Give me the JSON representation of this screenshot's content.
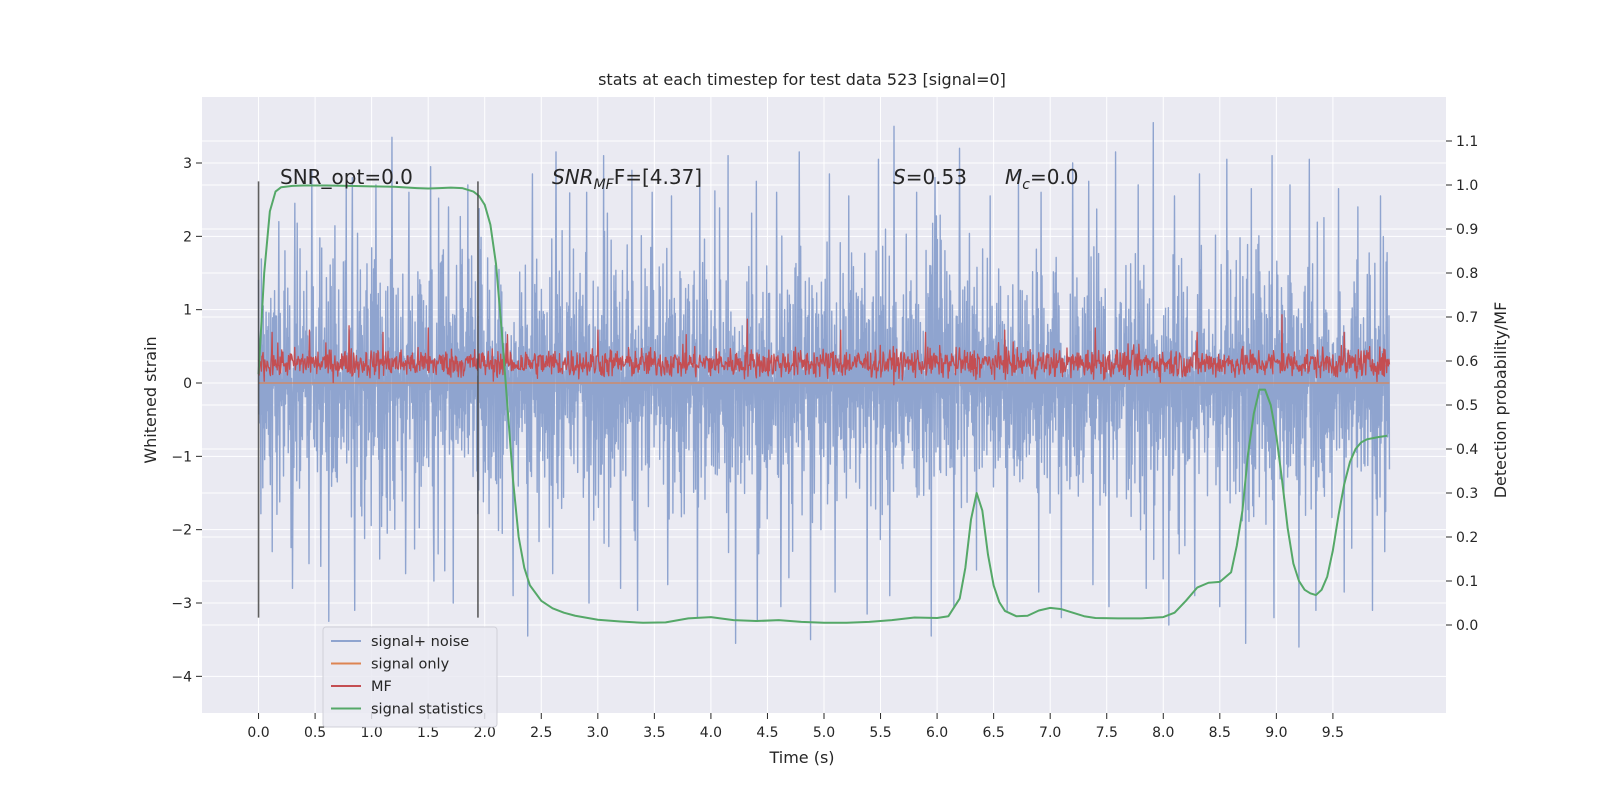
{
  "chart_data": {
    "type": "line",
    "title": "stats at each timestep for test data 523 [signal=0]",
    "xlabel": "Time (s)",
    "ylabel": "Whitened strain",
    "ylabel_right": "Detection probability/MF",
    "xlim": [
      -0.5,
      10.5
    ],
    "ylim": [
      -4.5,
      3.9
    ],
    "ylim_right": [
      -0.2,
      1.2
    ],
    "x_ticks": [
      "0.0",
      "0.5",
      "1.0",
      "1.5",
      "2.0",
      "2.5",
      "3.0",
      "3.5",
      "4.0",
      "4.5",
      "5.0",
      "5.5",
      "6.0",
      "6.5",
      "7.0",
      "7.5",
      "8.0",
      "8.5",
      "9.0",
      "9.5"
    ],
    "y_ticks": [
      "−4",
      "−3",
      "−2",
      "−1",
      "0",
      "1",
      "2",
      "3"
    ],
    "y_ticks_right": [
      "0.0",
      "0.1",
      "0.2",
      "0.3",
      "0.4",
      "0.5",
      "0.6",
      "0.7",
      "0.8",
      "0.9",
      "1.0",
      "1.1"
    ],
    "grid": true,
    "legend_position": "lower-left",
    "annotations": {
      "snr_opt": "SNR_opt=0.0",
      "snr_mf_base": "SNR",
      "snr_mf_sub": "MF",
      "snr_mf_rest": "F=[4.37]",
      "s_sym": "S",
      "s_rest": "=0.53",
      "mc_base": "M",
      "mc_sub": "c",
      "mc_rest": "=0.0"
    },
    "vertical_markers": [
      0.0,
      1.94
    ],
    "series": [
      {
        "name": "signal+ noise",
        "color": "#8fa4cf",
        "kind": "noise",
        "x_range": [
          0.0,
          10.0
        ],
        "axis": "left",
        "spread": 1.3,
        "peaks_high": [
          [
            0.18,
            2.2
          ],
          [
            0.32,
            2.45
          ],
          [
            0.47,
            2.9
          ],
          [
            0.62,
            2.6
          ],
          [
            0.83,
            2.8
          ],
          [
            1.04,
            2.7
          ],
          [
            1.18,
            3.35
          ],
          [
            1.33,
            2.6
          ],
          [
            1.52,
            2.95
          ],
          [
            1.68,
            2.4
          ],
          [
            1.85,
            2.7
          ],
          [
            2.25,
            2.55
          ],
          [
            2.42,
            2.85
          ],
          [
            2.63,
            3.15
          ],
          [
            2.9,
            2.6
          ],
          [
            3.05,
            3.1
          ],
          [
            3.3,
            2.9
          ],
          [
            3.48,
            2.6
          ],
          [
            3.65,
            2.55
          ],
          [
            3.9,
            2.85
          ],
          [
            4.15,
            3.1
          ],
          [
            4.4,
            2.75
          ],
          [
            4.58,
            2.6
          ],
          [
            4.78,
            3.15
          ],
          [
            5.05,
            2.85
          ],
          [
            5.22,
            2.55
          ],
          [
            5.48,
            3.05
          ],
          [
            5.62,
            3.5
          ],
          [
            5.82,
            2.6
          ],
          [
            5.98,
            2.8
          ],
          [
            6.2,
            3.2
          ],
          [
            6.47,
            2.55
          ],
          [
            6.72,
            2.85
          ],
          [
            6.92,
            2.6
          ],
          [
            7.2,
            3.0
          ],
          [
            7.34,
            2.75
          ],
          [
            7.58,
            3.15
          ],
          [
            7.78,
            2.7
          ],
          [
            7.91,
            3.55
          ],
          [
            8.1,
            2.55
          ],
          [
            8.32,
            2.85
          ],
          [
            8.56,
            3.05
          ],
          [
            8.78,
            2.65
          ],
          [
            8.96,
            3.1
          ],
          [
            9.12,
            2.7
          ],
          [
            9.29,
            3.05
          ],
          [
            9.55,
            2.65
          ],
          [
            9.72,
            2.4
          ],
          [
            9.92,
            2.55
          ]
        ],
        "peaks_low": [
          [
            0.12,
            -2.3
          ],
          [
            0.3,
            -2.8
          ],
          [
            0.55,
            -2.5
          ],
          [
            0.62,
            -3.25
          ],
          [
            0.85,
            -3.1
          ],
          [
            1.07,
            -2.4
          ],
          [
            1.3,
            -2.6
          ],
          [
            1.55,
            -2.7
          ],
          [
            1.72,
            -3.0
          ],
          [
            2.25,
            -2.9
          ],
          [
            2.38,
            -3.45
          ],
          [
            2.6,
            -2.6
          ],
          [
            2.92,
            -3.0
          ],
          [
            3.2,
            -2.8
          ],
          [
            3.35,
            -3.1
          ],
          [
            3.62,
            -2.75
          ],
          [
            3.88,
            -3.2
          ],
          [
            4.22,
            -3.55
          ],
          [
            4.41,
            -3.25
          ],
          [
            4.62,
            -3.05
          ],
          [
            4.88,
            -3.5
          ],
          [
            5.1,
            -2.85
          ],
          [
            5.38,
            -3.15
          ],
          [
            5.58,
            -2.9
          ],
          [
            5.95,
            -3.45
          ],
          [
            6.15,
            -3.05
          ],
          [
            6.35,
            -2.55
          ],
          [
            6.62,
            -3.1
          ],
          [
            6.9,
            -2.85
          ],
          [
            7.1,
            -3.2
          ],
          [
            7.38,
            -2.75
          ],
          [
            7.52,
            -3.05
          ],
          [
            7.85,
            -2.8
          ],
          [
            8.05,
            -3.3
          ],
          [
            8.28,
            -2.9
          ],
          [
            8.5,
            -3.05
          ],
          [
            8.73,
            -3.55
          ],
          [
            8.98,
            -3.2
          ],
          [
            9.2,
            -3.6
          ],
          [
            9.35,
            -3.1
          ],
          [
            9.6,
            -2.85
          ],
          [
            9.85,
            -3.1
          ],
          [
            9.96,
            -2.3
          ]
        ]
      },
      {
        "name": "signal only",
        "color": "#dd8452",
        "kind": "flat",
        "axis": "left",
        "x": [
          0.0,
          10.0
        ],
        "y": [
          0.0,
          0.0
        ]
      },
      {
        "name": "MF",
        "color": "#c44e52",
        "kind": "mf",
        "axis": "right",
        "x_range": [
          0.0,
          10.0
        ],
        "base": 0.595,
        "spread": 0.03,
        "peaks": [
          [
            0.12,
            0.665
          ],
          [
            0.45,
            0.67
          ],
          [
            0.8,
            0.68
          ],
          [
            1.1,
            0.665
          ],
          [
            1.5,
            0.675
          ],
          [
            2.2,
            0.66
          ],
          [
            3.0,
            0.67
          ],
          [
            3.78,
            0.66
          ],
          [
            4.32,
            0.695
          ],
          [
            5.15,
            0.67
          ],
          [
            5.9,
            0.665
          ],
          [
            6.6,
            0.67
          ],
          [
            7.4,
            0.675
          ],
          [
            8.3,
            0.665
          ],
          [
            9.05,
            0.705
          ],
          [
            9.6,
            0.665
          ]
        ]
      },
      {
        "name": "signal statistics",
        "color": "#55a868",
        "kind": "line",
        "axis": "right",
        "x": [
          0.0,
          0.05,
          0.1,
          0.15,
          0.2,
          0.3,
          0.4,
          0.6,
          0.8,
          1.0,
          1.2,
          1.4,
          1.5,
          1.6,
          1.7,
          1.8,
          1.9,
          1.95,
          2.0,
          2.05,
          2.1,
          2.15,
          2.2,
          2.25,
          2.3,
          2.35,
          2.4,
          2.5,
          2.6,
          2.7,
          2.8,
          3.0,
          3.2,
          3.4,
          3.6,
          3.8,
          4.0,
          4.2,
          4.4,
          4.6,
          4.8,
          5.0,
          5.2,
          5.4,
          5.6,
          5.8,
          6.0,
          6.1,
          6.2,
          6.25,
          6.3,
          6.35,
          6.4,
          6.45,
          6.5,
          6.55,
          6.6,
          6.7,
          6.8,
          6.9,
          7.0,
          7.1,
          7.2,
          7.3,
          7.4,
          7.6,
          7.8,
          8.0,
          8.1,
          8.2,
          8.3,
          8.4,
          8.5,
          8.6,
          8.65,
          8.7,
          8.75,
          8.8,
          8.85,
          8.9,
          8.95,
          9.0,
          9.05,
          9.1,
          9.15,
          9.2,
          9.25,
          9.3,
          9.35,
          9.4,
          9.45,
          9.5,
          9.55,
          9.6,
          9.65,
          9.7,
          9.75,
          9.8,
          9.9,
          9.98
        ],
        "y": [
          0.57,
          0.8,
          0.94,
          0.985,
          0.995,
          0.998,
          0.999,
          0.999,
          0.998,
          0.997,
          0.996,
          0.993,
          0.992,
          0.993,
          0.994,
          0.993,
          0.985,
          0.975,
          0.955,
          0.91,
          0.82,
          0.67,
          0.5,
          0.33,
          0.2,
          0.13,
          0.09,
          0.055,
          0.038,
          0.028,
          0.021,
          0.012,
          0.008,
          0.005,
          0.006,
          0.015,
          0.018,
          0.011,
          0.009,
          0.011,
          0.007,
          0.005,
          0.005,
          0.007,
          0.011,
          0.017,
          0.016,
          0.02,
          0.06,
          0.13,
          0.24,
          0.3,
          0.26,
          0.16,
          0.09,
          0.052,
          0.032,
          0.02,
          0.021,
          0.033,
          0.039,
          0.036,
          0.028,
          0.02,
          0.016,
          0.015,
          0.015,
          0.018,
          0.028,
          0.055,
          0.085,
          0.096,
          0.098,
          0.12,
          0.18,
          0.26,
          0.39,
          0.48,
          0.535,
          0.535,
          0.5,
          0.43,
          0.33,
          0.22,
          0.14,
          0.1,
          0.08,
          0.072,
          0.068,
          0.08,
          0.11,
          0.17,
          0.25,
          0.32,
          0.37,
          0.4,
          0.415,
          0.422,
          0.427,
          0.43
        ]
      }
    ]
  }
}
